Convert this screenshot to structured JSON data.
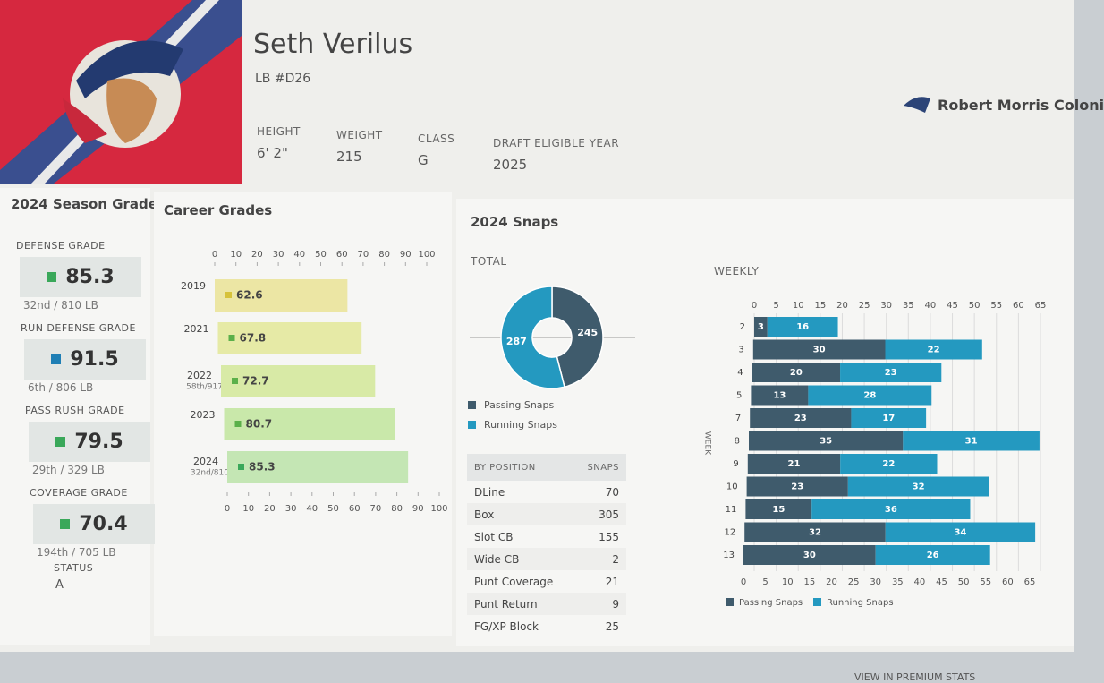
{
  "header": {
    "name": "Seth Verilus",
    "position": "LB #D26",
    "team": "Robert Morris Coloni",
    "bio": [
      {
        "label": "HEIGHT",
        "value": "6' 2\""
      },
      {
        "label": "WEIGHT",
        "value": "215"
      },
      {
        "label": "CLASS",
        "value": "G"
      },
      {
        "label": "DRAFT ELIGIBLE YEAR",
        "value": "2025"
      }
    ]
  },
  "season_grades": {
    "title": "2024 Season Grades",
    "grades": [
      {
        "label": "DEFENSE GRADE",
        "value": 85.3,
        "rank": "32nd / 810 LB",
        "color": "#3aa85a"
      },
      {
        "label": "RUN DEFENSE GRADE",
        "value": 91.5,
        "rank": "6th / 806 LB",
        "color": "#1f7fb5"
      },
      {
        "label": "PASS RUSH GRADE",
        "value": 79.5,
        "rank": "29th / 329 LB",
        "color": "#3aa85a"
      },
      {
        "label": "COVERAGE GRADE",
        "value": 70.4,
        "rank": "194th / 705 LB",
        "color": "#3aa85a"
      }
    ],
    "status": {
      "label": "STATUS",
      "value": "A"
    }
  },
  "career_grades": {
    "type": "bar",
    "title": "Career Grades",
    "categories": [
      "2019",
      "2021",
      "2022",
      "2023",
      "2024"
    ],
    "sublabels": [
      null,
      null,
      "58th/917",
      null,
      "32nd/810"
    ],
    "values": [
      62.6,
      67.8,
      72.7,
      80.7,
      85.3
    ],
    "colors": [
      "#ece6a4",
      "#e6eaa6",
      "#d8eaa6",
      "#c9e8aa",
      "#c4e6b4"
    ],
    "dot_colors": [
      "#d6c23a",
      "#5bb04a",
      "#5bb04a",
      "#5bb04a",
      "#3aa85a"
    ],
    "xlim": [
      0,
      100
    ],
    "xticks": [
      0,
      10,
      20,
      30,
      40,
      50,
      60,
      70,
      80,
      90,
      100
    ]
  },
  "snaps": {
    "title": "2024 Snaps",
    "total": {
      "type": "pie",
      "title": "TOTAL",
      "categories": [
        "Passing Snaps",
        "Running Snaps"
      ],
      "values": [
        245,
        287
      ],
      "colors": [
        "#3f5b6c",
        "#2499c0"
      ]
    },
    "by_position": {
      "header": [
        "BY POSITION",
        "SNAPS"
      ],
      "rows": [
        [
          "DLine",
          "70"
        ],
        [
          "Box",
          "305"
        ],
        [
          "Slot CB",
          "155"
        ],
        [
          "Wide CB",
          "2"
        ],
        [
          "Punt Coverage",
          "21"
        ],
        [
          "Punt Return",
          "9"
        ],
        [
          "FG/XP Block",
          "25"
        ]
      ]
    },
    "weekly": {
      "type": "bar",
      "title": "WEEKLY",
      "y_label": "WEEK",
      "stacked": true,
      "orientation": "horizontal",
      "categories": [
        "2",
        "3",
        "4",
        "5",
        "7",
        "8",
        "9",
        "10",
        "11",
        "12",
        "13"
      ],
      "series": [
        {
          "name": "Passing Snaps",
          "color": "#3f5b6c",
          "values": [
            3,
            30,
            20,
            13,
            23,
            35,
            21,
            23,
            15,
            32,
            30
          ]
        },
        {
          "name": "Running Snaps",
          "color": "#2499c0",
          "values": [
            16,
            22,
            23,
            28,
            17,
            31,
            22,
            32,
            36,
            34,
            26
          ]
        }
      ],
      "xlim": [
        0,
        65
      ],
      "xticks": [
        0,
        5,
        10,
        15,
        20,
        25,
        30,
        35,
        40,
        45,
        50,
        55,
        60,
        65
      ]
    }
  },
  "footer": {
    "link": "VIEW IN PREMIUM STATS"
  }
}
